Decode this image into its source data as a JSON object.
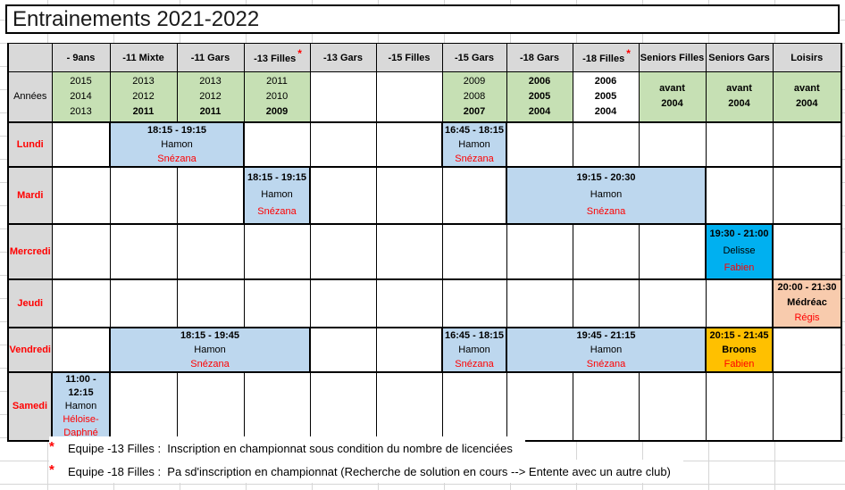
{
  "title": "Entrainements 2021-2022",
  "colors": {
    "header_bg": "#D9D9D9",
    "years_bg": "#C6E0B4",
    "session_blue": "#BDD7EE",
    "session_cyan": "#00B0F0",
    "session_peach": "#F8CBAD",
    "session_gold": "#FFC000",
    "red_text": "#FF0000",
    "gridline": "#D6D6D6"
  },
  "table": {
    "asterisk_char": "*",
    "columns": [
      {
        "label": "- 9ans",
        "asterisk": false
      },
      {
        "label": "-11 Mixte",
        "asterisk": false
      },
      {
        "label": "-11 Gars",
        "asterisk": false
      },
      {
        "label": "-13 Filles",
        "asterisk": true
      },
      {
        "label": "-13 Gars",
        "asterisk": false
      },
      {
        "label": "-15 Filles",
        "asterisk": false
      },
      {
        "label": "-15 Gars",
        "asterisk": false
      },
      {
        "label": "-18 Gars",
        "asterisk": false
      },
      {
        "label": "-18 Filles",
        "asterisk": true
      },
      {
        "label": "Seniors Filles",
        "asterisk": false
      },
      {
        "label": "Seniors Gars",
        "asterisk": false
      },
      {
        "label": "Loisirs",
        "asterisk": false
      }
    ],
    "years_row": {
      "label": "Années",
      "cells": [
        {
          "lines": [
            "2015",
            "2014",
            "2013"
          ],
          "bold": [],
          "bg": "green"
        },
        {
          "lines": [
            "2013",
            "2012",
            "2011"
          ],
          "bold": [
            2
          ],
          "bg": "green"
        },
        {
          "lines": [
            "2013",
            "2012",
            "2011"
          ],
          "bold": [
            2
          ],
          "bg": "green"
        },
        {
          "lines": [
            "2011",
            "2010",
            "2009"
          ],
          "bold": [
            2
          ],
          "bg": "green"
        },
        {
          "lines": [],
          "bold": [],
          "bg": "white"
        },
        {
          "lines": [],
          "bold": [],
          "bg": "white"
        },
        {
          "lines": [
            "2009",
            "2008",
            "2007"
          ],
          "bold": [
            2
          ],
          "bg": "green"
        },
        {
          "lines": [
            "2006",
            "2005",
            "2004"
          ],
          "bold": [
            0,
            1,
            2
          ],
          "bg": "green"
        },
        {
          "lines": [
            "2006",
            "2005",
            "2004"
          ],
          "bold": [
            0,
            1,
            2
          ],
          "bg": "white"
        },
        {
          "lines": [
            "avant",
            "2004"
          ],
          "bold": [
            0,
            1
          ],
          "bg": "green"
        },
        {
          "lines": [
            "avant",
            "2004"
          ],
          "bold": [
            0,
            1
          ],
          "bg": "green"
        },
        {
          "lines": [
            "avant",
            "2004"
          ],
          "bold": [
            0,
            1
          ],
          "bg": "green"
        }
      ]
    },
    "day_rows": [
      {
        "label": "Lundi",
        "cells": [
          {
            "type": "empty",
            "span": 1
          },
          {
            "type": "session",
            "span": 2,
            "style": "blue",
            "time": "18:15 - 19:15",
            "name": "Hamon",
            "name_bold": false,
            "coach": "Snézana"
          },
          {
            "type": "empty",
            "span": 1
          },
          {
            "type": "empty",
            "span": 1
          },
          {
            "type": "empty",
            "span": 1
          },
          {
            "type": "session",
            "span": 1,
            "style": "blue",
            "time": "16:45 - 18:15",
            "name": "Hamon",
            "name_bold": false,
            "coach": "Snézana"
          },
          {
            "type": "empty",
            "span": 1
          },
          {
            "type": "empty",
            "span": 1
          },
          {
            "type": "empty",
            "span": 1
          },
          {
            "type": "empty",
            "span": 1
          },
          {
            "type": "empty",
            "span": 1
          }
        ]
      },
      {
        "label": "Mardi",
        "cells": [
          {
            "type": "empty",
            "span": 1
          },
          {
            "type": "empty",
            "span": 1
          },
          {
            "type": "empty",
            "span": 1
          },
          {
            "type": "session",
            "span": 1,
            "style": "blue",
            "time": "18:15 - 19:15",
            "name": "Hamon",
            "name_bold": false,
            "coach": "Snézana"
          },
          {
            "type": "empty",
            "span": 1
          },
          {
            "type": "empty",
            "span": 1
          },
          {
            "type": "empty",
            "span": 1
          },
          {
            "type": "session",
            "span": 3,
            "style": "blue",
            "time": "19:15 - 20:30",
            "name": "Hamon",
            "name_bold": false,
            "coach": "Snézana"
          },
          {
            "type": "empty",
            "span": 1
          },
          {
            "type": "empty",
            "span": 1
          }
        ]
      },
      {
        "label": "Mercredi",
        "cells": [
          {
            "type": "empty",
            "span": 1
          },
          {
            "type": "empty",
            "span": 1
          },
          {
            "type": "empty",
            "span": 1
          },
          {
            "type": "empty",
            "span": 1
          },
          {
            "type": "empty",
            "span": 1
          },
          {
            "type": "empty",
            "span": 1
          },
          {
            "type": "empty",
            "span": 1
          },
          {
            "type": "empty",
            "span": 1
          },
          {
            "type": "empty",
            "span": 1
          },
          {
            "type": "empty",
            "span": 1
          },
          {
            "type": "session",
            "span": 1,
            "style": "cyan",
            "time": "19:30 - 21:00",
            "name": "Delisse",
            "name_bold": false,
            "coach": "Fabien"
          },
          {
            "type": "empty",
            "span": 1
          }
        ]
      },
      {
        "label": "Jeudi",
        "cells": [
          {
            "type": "empty",
            "span": 1
          },
          {
            "type": "empty",
            "span": 1
          },
          {
            "type": "empty",
            "span": 1
          },
          {
            "type": "empty",
            "span": 1
          },
          {
            "type": "empty",
            "span": 1
          },
          {
            "type": "empty",
            "span": 1
          },
          {
            "type": "empty",
            "span": 1
          },
          {
            "type": "empty",
            "span": 1
          },
          {
            "type": "empty",
            "span": 1
          },
          {
            "type": "empty",
            "span": 1
          },
          {
            "type": "empty",
            "span": 1
          },
          {
            "type": "session",
            "span": 1,
            "style": "peach",
            "time": "20:00 - 21:30",
            "name": "Médréac",
            "name_bold": true,
            "coach": "Régis"
          }
        ]
      },
      {
        "label": "Vendredi",
        "cells": [
          {
            "type": "empty",
            "span": 1
          },
          {
            "type": "session",
            "span": 3,
            "style": "blue",
            "time": "18:15 - 19:45",
            "name": "Hamon",
            "name_bold": false,
            "coach": "Snézana"
          },
          {
            "type": "empty",
            "span": 1
          },
          {
            "type": "empty",
            "span": 1
          },
          {
            "type": "session",
            "span": 1,
            "style": "blue",
            "time": "16:45 - 18:15",
            "name": "Hamon",
            "name_bold": false,
            "coach": "Snézana"
          },
          {
            "type": "session",
            "span": 3,
            "style": "blue",
            "time": "19:45 - 21:15",
            "name": "Hamon",
            "name_bold": false,
            "coach": "Snézana"
          },
          {
            "type": "session",
            "span": 1,
            "style": "gold",
            "time": "20:15 - 21:45",
            "name": "Broons",
            "name_bold": true,
            "coach": "Fabien"
          },
          {
            "type": "empty",
            "span": 1
          }
        ]
      },
      {
        "label": "Samedi",
        "cells": [
          {
            "type": "session",
            "span": 1,
            "style": "blue",
            "time": "11:00 - 12:15",
            "name": "Hamon",
            "name_bold": false,
            "coach": "Héloise-Daphné"
          },
          {
            "type": "empty",
            "span": 1
          },
          {
            "type": "empty",
            "span": 1
          },
          {
            "type": "empty",
            "span": 1
          },
          {
            "type": "empty",
            "span": 1
          },
          {
            "type": "empty",
            "span": 1
          },
          {
            "type": "empty",
            "span": 1
          },
          {
            "type": "empty",
            "span": 1
          },
          {
            "type": "empty",
            "span": 1
          },
          {
            "type": "empty",
            "span": 1
          },
          {
            "type": "empty",
            "span": 1
          },
          {
            "type": "empty",
            "span": 1
          }
        ]
      }
    ]
  },
  "footnotes": [
    {
      "marker": "*",
      "text": "Equipe -13 Filles :  Inscription en championnat sous condition du nombre de licenciées"
    },
    {
      "marker": "*",
      "text": "Equipe -18 Filles :  Pa sd'inscription en championnat (Recherche de solution en cours --> Entente avec un autre club)"
    }
  ]
}
